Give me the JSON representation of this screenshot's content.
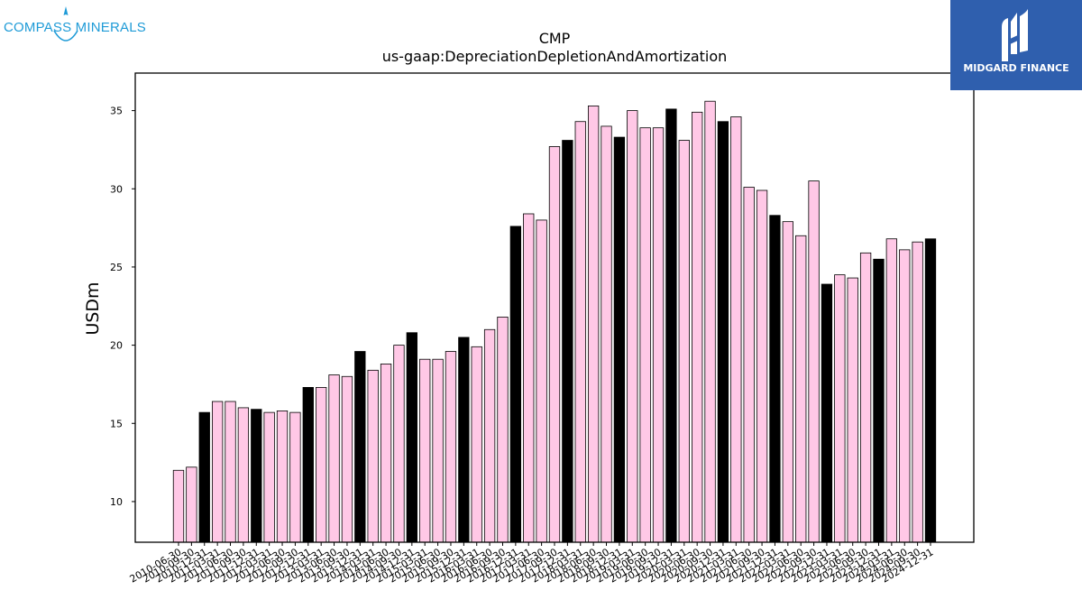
{
  "logos": {
    "left_text": "COMPASS MINERALS",
    "right_text": "MIDGARD FINANCE"
  },
  "chart_data": {
    "type": "bar",
    "title": "CMP",
    "subtitle": "us-gaap:DepreciationDepletionAndAmortization",
    "ylabel": "USDm",
    "xlabel": "",
    "ylim": [
      7.4,
      37.4
    ],
    "yticks": [
      10,
      15,
      20,
      25,
      30,
      35
    ],
    "grid": false,
    "colors": {
      "regular": "#ffc8e6",
      "highlight": "#000000",
      "edge": "#000000"
    },
    "categories": [
      "2010-06-30",
      "2010-09-30",
      "2010-12-31",
      "2011-03-31",
      "2011-06-30",
      "2011-09-30",
      "2011-12-31",
      "2012-03-31",
      "2012-06-30",
      "2012-09-30",
      "2012-12-31",
      "2013-03-31",
      "2013-06-30",
      "2013-09-30",
      "2013-12-31",
      "2014-03-31",
      "2014-06-30",
      "2014-09-30",
      "2014-12-31",
      "2015-03-31",
      "2015-06-30",
      "2015-09-30",
      "2015-12-31",
      "2016-03-31",
      "2016-06-30",
      "2016-09-30",
      "2016-12-31",
      "2017-03-31",
      "2017-06-30",
      "2017-09-30",
      "2017-12-31",
      "2018-03-31",
      "2018-06-30",
      "2018-09-30",
      "2018-12-31",
      "2019-03-31",
      "2019-06-30",
      "2019-09-30",
      "2019-12-31",
      "2020-03-31",
      "2020-06-30",
      "2020-09-30",
      "2020-12-31",
      "2021-03-31",
      "2021-06-30",
      "2021-09-30",
      "2021-12-31",
      "2022-03-31",
      "2022-06-30",
      "2022-09-30",
      "2022-12-31",
      "2023-03-31",
      "2023-06-30",
      "2023-09-30",
      "2023-12-31",
      "2024-03-31",
      "2024-06-30",
      "2024-09-30",
      "2024-12-31"
    ],
    "values": [
      12.0,
      12.2,
      15.7,
      16.4,
      16.4,
      16.0,
      15.9,
      15.7,
      15.8,
      15.7,
      17.3,
      17.3,
      18.1,
      18.0,
      19.6,
      18.4,
      18.8,
      20.0,
      20.8,
      19.1,
      19.1,
      19.6,
      20.5,
      19.9,
      21.0,
      21.8,
      27.6,
      28.4,
      28.0,
      32.7,
      33.1,
      34.3,
      35.3,
      34.0,
      33.3,
      35.0,
      33.9,
      33.9,
      35.1,
      33.1,
      34.9,
      35.6,
      34.3,
      34.6,
      30.1,
      29.9,
      28.3,
      27.9,
      27.0,
      30.5,
      23.9,
      24.5,
      24.3,
      25.9,
      25.5,
      26.8,
      26.1,
      26.6,
      26.8
    ],
    "highlight": [
      false,
      false,
      true,
      false,
      false,
      false,
      true,
      false,
      false,
      false,
      true,
      false,
      false,
      false,
      true,
      false,
      false,
      false,
      true,
      false,
      false,
      false,
      true,
      false,
      false,
      false,
      true,
      false,
      false,
      false,
      true,
      false,
      false,
      false,
      true,
      false,
      false,
      false,
      true,
      false,
      false,
      false,
      true,
      false,
      false,
      false,
      true,
      false,
      false,
      false,
      true,
      false,
      false,
      false,
      true,
      false,
      false,
      false,
      true
    ]
  }
}
